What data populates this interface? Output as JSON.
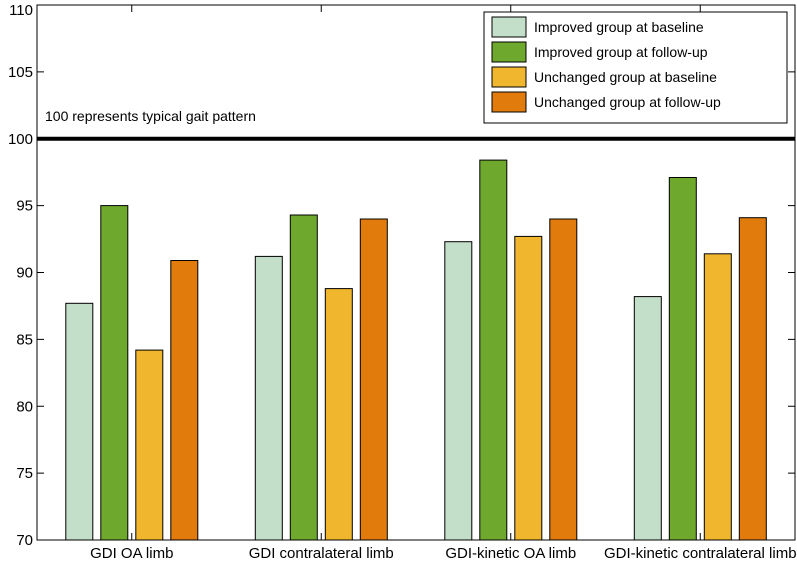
{
  "chart_data": {
    "type": "bar",
    "title": "",
    "xlabel": "",
    "ylabel": "",
    "ylim": [
      70,
      110
    ],
    "yticks": [
      70,
      75,
      80,
      85,
      90,
      95,
      100,
      105,
      110
    ],
    "grid": false,
    "legend_position": "top-right",
    "categories": [
      "GDI OA limb",
      "GDI contralateral limb",
      "GDI-kinetic OA limb",
      "GDI-kinetic contralateral limb"
    ],
    "series": [
      {
        "name": "Improved group at baseline",
        "color": "#c3dfc9",
        "values": [
          87.7,
          91.2,
          92.3,
          88.2
        ]
      },
      {
        "name": "Improved group at follow-up",
        "color": "#6ea82c",
        "values": [
          95.0,
          94.3,
          98.4,
          97.1
        ]
      },
      {
        "name": "Unchanged group at baseline",
        "color": "#f0b62d",
        "values": [
          84.2,
          88.8,
          92.7,
          91.4
        ]
      },
      {
        "name": "Unchanged group at follow-up",
        "color": "#e07b0c",
        "values": [
          90.9,
          94.0,
          94.0,
          94.1
        ]
      }
    ],
    "reference_line": {
      "value": 100,
      "label": "100 represents typical gait pattern"
    }
  }
}
